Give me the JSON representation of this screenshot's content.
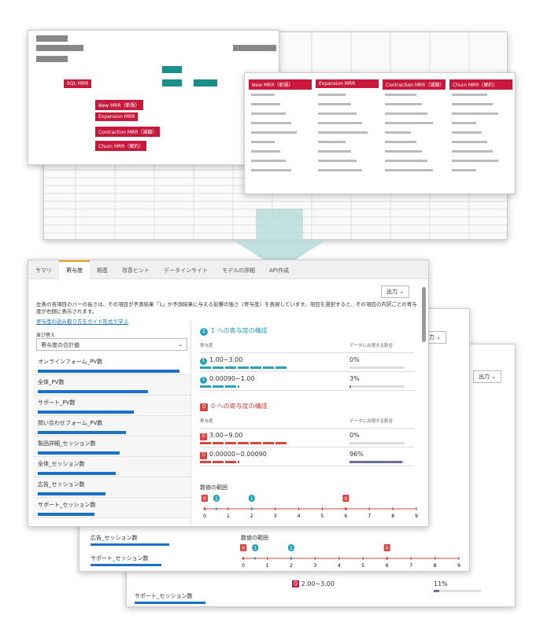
{
  "top": {
    "diagram_labels": [
      "SQL MRR",
      "New MRR（新規）",
      "Expansion MRR",
      "Contraction MRR（減額）",
      "Churn MRR（解約）"
    ],
    "sheet_labels": [
      "New MRR（新規）",
      "Expansion MRR",
      "Contraction MRR（減額）",
      "Churn MRR（解約）"
    ]
  },
  "tabs": [
    "サマリ",
    "寄与度",
    "期産",
    "改善ヒント",
    "データインサイト",
    "モデルの詳細",
    "API作成"
  ],
  "active_tab": 1,
  "export_button": "出力",
  "description": "左表の各項目のバーの長さは、その項目が予測結果「1」か予測結果に与える影響の強さ（寄与度）を表現しています。項目を選択すると、その項目の内訳ごとの寄与度が右側に表示されます。",
  "help_link": "寄与度の読み取り方をガイド形式で学ぶ",
  "sort_label": "並び替え",
  "sort_value": "寄与度の合計値",
  "features": [
    {
      "name": "オンラインフォーム_PV数",
      "bar": 100
    },
    {
      "name": "全体_PV数",
      "bar": 78
    },
    {
      "name": "サポート_PV数",
      "bar": 68
    },
    {
      "name": "問い合わせフォーム_PV数",
      "bar": 62
    },
    {
      "name": "製品詳細_セッション数",
      "bar": 58
    },
    {
      "name": "全体_セッション数",
      "bar": 55
    },
    {
      "name": "広告_セッション数",
      "bar": 48
    },
    {
      "name": "サポート_セッション数",
      "bar": 40
    }
  ],
  "positive": {
    "title": "1 への寄与度の構成",
    "col1": "寄与度",
    "col2": "データに出現する割合",
    "icon": "1",
    "rows": [
      {
        "range": "1.00~3.00",
        "share": 0,
        "share_label": "0%"
      },
      {
        "range": "0.00090~1.00",
        "share": 3,
        "share_label": "3%"
      }
    ]
  },
  "negative": {
    "title": "0 への寄与度の構成",
    "col1": "寄与度",
    "col2": "データに出現する割合",
    "icon": "0",
    "rows": [
      {
        "range": "3.00~9.00",
        "share": 0,
        "share_label": "0%"
      },
      {
        "range": "0.00000~0.00090",
        "share": 96,
        "share_label": "96%"
      }
    ]
  },
  "range_title": "数値の範囲",
  "range_ticks": [
    0,
    1,
    2,
    3,
    4,
    5,
    6,
    7,
    8,
    9
  ],
  "range_markers": [
    {
      "label": "0",
      "x": 0
    },
    {
      "label": "1",
      "x": 0.5
    },
    {
      "label": "1",
      "x": 2
    },
    {
      "label": "0",
      "x": 6
    }
  ],
  "back_panel": {
    "export_button": "出力",
    "features": [
      "広告_セッション数",
      "サポート_セッション数"
    ],
    "row_range": "2.00~3.00",
    "row_share": 11,
    "row_share_label": "11%"
  }
}
